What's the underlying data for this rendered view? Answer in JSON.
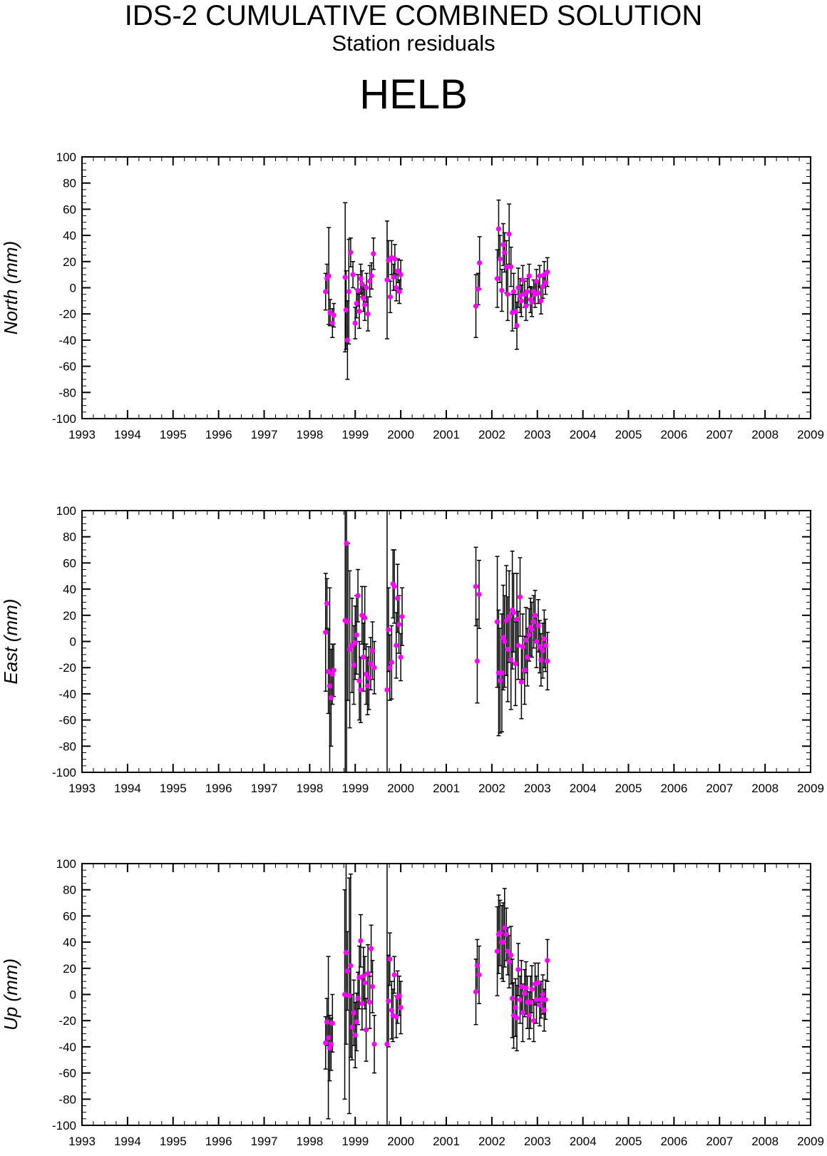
{
  "header": {
    "title": "IDS-2 CUMULATIVE COMBINED SOLUTION",
    "subtitle": "Station residuals",
    "station": "HELB"
  },
  "colors": {
    "marker": "#ff00ff",
    "errorbar": "#000000",
    "axis": "#000000"
  },
  "chart_data": [
    {
      "type": "scatter",
      "title": "HELB",
      "xlabel": "",
      "ylabel": "North (mm)",
      "xlim": [
        1993,
        2009
      ],
      "ylim": [
        -100,
        100
      ],
      "x_ticks": [
        "1993",
        "1994",
        "1995",
        "1996",
        "1997",
        "1998",
        "1999",
        "2000",
        "2001",
        "2002",
        "2003",
        "2004",
        "2005",
        "2006",
        "2007",
        "2008",
        "2009"
      ],
      "y_ticks": [
        "100",
        "80",
        "60",
        "40",
        "20",
        "0",
        "-20",
        "-40",
        "-60",
        "-80",
        "-100"
      ],
      "grid": false,
      "points": [
        [
          1998.35,
          -3,
          14
        ],
        [
          1998.38,
          7,
          11
        ],
        [
          1998.42,
          9,
          37
        ],
        [
          1998.45,
          -19,
          10
        ],
        [
          1998.5,
          -27,
          11
        ],
        [
          1998.53,
          -21,
          9
        ],
        [
          1998.78,
          8,
          57
        ],
        [
          1998.8,
          -17,
          30
        ],
        [
          1998.83,
          -40,
          30
        ],
        [
          1998.86,
          -3,
          40
        ],
        [
          1998.9,
          27,
          11
        ],
        [
          1998.95,
          10,
          10
        ],
        [
          1999.0,
          -27,
          12
        ],
        [
          1999.03,
          -12,
          11
        ],
        [
          1999.06,
          -2,
          12
        ],
        [
          1999.09,
          -18,
          13
        ],
        [
          1999.12,
          7,
          11
        ],
        [
          1999.15,
          3,
          10
        ],
        [
          1999.18,
          -8,
          10
        ],
        [
          1999.21,
          -13,
          12
        ],
        [
          1999.25,
          0,
          11
        ],
        [
          1999.28,
          -20,
          13
        ],
        [
          1999.32,
          5,
          12
        ],
        [
          1999.36,
          9,
          10
        ],
        [
          1999.4,
          26,
          12
        ],
        [
          1999.7,
          6,
          45
        ],
        [
          1999.73,
          21,
          15
        ],
        [
          1999.77,
          -7,
          12
        ],
        [
          1999.8,
          23,
          13
        ],
        [
          1999.84,
          8,
          10
        ],
        [
          1999.87,
          22,
          11
        ],
        [
          1999.9,
          0,
          10
        ],
        [
          1999.94,
          13,
          9
        ],
        [
          1999.97,
          -3,
          9
        ],
        [
          2000.0,
          10,
          11
        ],
        [
          2001.65,
          -14,
          24
        ],
        [
          2001.7,
          -1,
          12
        ],
        [
          2001.73,
          19,
          20
        ],
        [
          2002.12,
          7,
          22
        ],
        [
          2002.15,
          45,
          22
        ],
        [
          2002.18,
          22,
          18
        ],
        [
          2002.22,
          -2,
          16
        ],
        [
          2002.25,
          33,
          16
        ],
        [
          2002.28,
          27,
          15
        ],
        [
          2002.32,
          16,
          20
        ],
        [
          2002.35,
          -5,
          20
        ],
        [
          2002.38,
          41,
          23
        ],
        [
          2002.42,
          16,
          15
        ],
        [
          2002.45,
          -19,
          14
        ],
        [
          2002.48,
          -3,
          14
        ],
        [
          2002.52,
          -18,
          13
        ],
        [
          2002.55,
          -29,
          18
        ],
        [
          2002.58,
          0,
          15
        ],
        [
          2002.62,
          -6,
          13
        ],
        [
          2002.65,
          -10,
          12
        ],
        [
          2002.68,
          6,
          11
        ],
        [
          2002.72,
          -5,
          10
        ],
        [
          2002.75,
          -14,
          11
        ],
        [
          2002.78,
          -3,
          10
        ],
        [
          2002.82,
          9,
          9
        ],
        [
          2002.85,
          -9,
          10
        ],
        [
          2002.88,
          -11,
          11
        ],
        [
          2002.92,
          -3,
          9
        ],
        [
          2002.95,
          -5,
          10
        ],
        [
          2002.98,
          5,
          9
        ],
        [
          2003.02,
          -4,
          8
        ],
        [
          2003.05,
          9,
          8
        ],
        [
          2003.08,
          -10,
          10
        ],
        [
          2003.12,
          1,
          9
        ],
        [
          2003.15,
          10,
          10
        ],
        [
          2003.18,
          4,
          9
        ],
        [
          2003.22,
          12,
          11
        ]
      ]
    },
    {
      "type": "scatter",
      "title": "",
      "xlabel": "",
      "ylabel": "East (mm)",
      "xlim": [
        1993,
        2009
      ],
      "ylim": [
        -100,
        100
      ],
      "x_ticks": [
        "1993",
        "1994",
        "1995",
        "1996",
        "1997",
        "1998",
        "1999",
        "2000",
        "2001",
        "2002",
        "2003",
        "2004",
        "2005",
        "2006",
        "2007",
        "2008",
        "2009"
      ],
      "y_ticks": [
        "100",
        "80",
        "60",
        "40",
        "20",
        "0",
        "-20",
        "-40",
        "-60",
        "-80",
        "-100"
      ],
      "grid": false,
      "points": [
        [
          1998.35,
          7,
          45
        ],
        [
          1998.38,
          29,
          19
        ],
        [
          1998.41,
          -23,
          32
        ],
        [
          1998.44,
          -34,
          75
        ],
        [
          1998.47,
          -43,
          37
        ],
        [
          1998.5,
          -25,
          23
        ],
        [
          1998.53,
          -22,
          20
        ],
        [
          1998.78,
          16,
          200
        ],
        [
          1998.81,
          75,
          200
        ],
        [
          1998.84,
          15,
          60
        ],
        [
          1998.88,
          -6,
          60
        ],
        [
          1998.93,
          -3,
          36
        ],
        [
          1998.97,
          -18,
          30
        ],
        [
          1999.0,
          -1,
          28
        ],
        [
          1999.03,
          5,
          30
        ],
        [
          1999.06,
          35,
          20
        ],
        [
          1999.09,
          -30,
          30
        ],
        [
          1999.12,
          -37,
          25
        ],
        [
          1999.15,
          20,
          22
        ],
        [
          1999.18,
          -12,
          26
        ],
        [
          1999.21,
          18,
          24
        ],
        [
          1999.24,
          -25,
          23
        ],
        [
          1999.27,
          -34,
          22
        ],
        [
          1999.3,
          -28,
          24
        ],
        [
          1999.34,
          -17,
          20
        ],
        [
          1999.38,
          -7,
          22
        ],
        [
          1999.42,
          -20,
          20
        ],
        [
          1999.7,
          -37,
          140
        ],
        [
          1999.73,
          9,
          32
        ],
        [
          1999.76,
          -20,
          25
        ],
        [
          1999.8,
          -16,
          28
        ],
        [
          1999.83,
          44,
          26
        ],
        [
          1999.86,
          42,
          28
        ],
        [
          1999.9,
          -3,
          25
        ],
        [
          1999.93,
          33,
          26
        ],
        [
          1999.96,
          13,
          22
        ],
        [
          2000.0,
          -12,
          18
        ],
        [
          2000.03,
          19,
          22
        ],
        [
          2001.65,
          42,
          30
        ],
        [
          2001.68,
          -15,
          32
        ],
        [
          2001.72,
          36,
          26
        ],
        [
          2002.12,
          15,
          50
        ],
        [
          2002.15,
          -24,
          48
        ],
        [
          2002.18,
          -30,
          40
        ],
        [
          2002.22,
          -24,
          45
        ],
        [
          2002.25,
          3,
          40
        ],
        [
          2002.28,
          0,
          35
        ],
        [
          2002.32,
          16,
          42
        ],
        [
          2002.35,
          -6,
          40
        ],
        [
          2002.38,
          19,
          35
        ],
        [
          2002.42,
          -14,
          38
        ],
        [
          2002.45,
          24,
          45
        ],
        [
          2002.48,
          22,
          30
        ],
        [
          2002.52,
          -17,
          32
        ],
        [
          2002.55,
          17,
          35
        ],
        [
          2002.58,
          -3,
          26
        ],
        [
          2002.62,
          34,
          30
        ],
        [
          2002.65,
          -31,
          28
        ],
        [
          2002.68,
          -4,
          25
        ],
        [
          2002.72,
          -22,
          26
        ],
        [
          2002.75,
          1,
          25
        ],
        [
          2002.78,
          -12,
          22
        ],
        [
          2002.82,
          5,
          20
        ],
        [
          2002.85,
          11,
          22
        ],
        [
          2002.88,
          9,
          21
        ],
        [
          2002.92,
          15,
          20
        ],
        [
          2002.95,
          20,
          19
        ],
        [
          2002.98,
          0,
          20
        ],
        [
          2003.02,
          12,
          20
        ],
        [
          2003.05,
          -4,
          20
        ],
        [
          2003.08,
          -14,
          20
        ],
        [
          2003.12,
          -7,
          21
        ],
        [
          2003.15,
          2,
          22
        ],
        [
          2003.18,
          -3,
          20
        ],
        [
          2003.22,
          -15,
          22
        ]
      ]
    },
    {
      "type": "scatter",
      "title": "",
      "xlabel": "",
      "ylabel": "Up (mm)",
      "xlim": [
        1993,
        2009
      ],
      "ylim": [
        -100,
        100
      ],
      "x_ticks": [
        "1993",
        "1994",
        "1995",
        "1996",
        "1997",
        "1998",
        "1999",
        "2000",
        "2001",
        "2002",
        "2003",
        "2004",
        "2005",
        "2006",
        "2007",
        "2008",
        "2009"
      ],
      "y_ticks": [
        "100",
        "80",
        "60",
        "40",
        "20",
        "0",
        "-20",
        "-40",
        "-60",
        "-80",
        "-100"
      ],
      "grid": false,
      "points": [
        [
          1998.35,
          -37,
          20
        ],
        [
          1998.38,
          -21,
          18
        ],
        [
          1998.41,
          -33,
          62
        ],
        [
          1998.44,
          -41,
          25
        ],
        [
          1998.47,
          -38,
          20
        ],
        [
          1998.5,
          -22,
          22
        ],
        [
          1998.77,
          0,
          80
        ],
        [
          1998.8,
          32,
          70
        ],
        [
          1998.83,
          18,
          30
        ],
        [
          1998.87,
          -1,
          90
        ],
        [
          1998.9,
          22,
          70
        ],
        [
          1998.93,
          -25,
          25
        ],
        [
          1998.97,
          -14,
          25
        ],
        [
          1999.0,
          -31,
          25
        ],
        [
          1999.03,
          -21,
          22
        ],
        [
          1999.06,
          -3,
          20
        ],
        [
          1999.09,
          13,
          24
        ],
        [
          1999.12,
          41,
          20
        ],
        [
          1999.15,
          -7,
          20
        ],
        [
          1999.18,
          14,
          22
        ],
        [
          1999.21,
          9,
          20
        ],
        [
          1999.24,
          -27,
          24
        ],
        [
          1999.28,
          16,
          22
        ],
        [
          1999.32,
          -6,
          20
        ],
        [
          1999.35,
          35,
          18
        ],
        [
          1999.38,
          6,
          20
        ],
        [
          1999.42,
          -38,
          22
        ],
        [
          1999.7,
          -38,
          140
        ],
        [
          1999.73,
          -5,
          35
        ],
        [
          1999.76,
          27,
          20
        ],
        [
          1999.8,
          -12,
          22
        ],
        [
          1999.83,
          -16,
          20
        ],
        [
          1999.86,
          15,
          14
        ],
        [
          1999.9,
          -17,
          16
        ],
        [
          1999.93,
          -2,
          20
        ],
        [
          1999.97,
          -1,
          15
        ],
        [
          2000.0,
          -10,
          20
        ],
        [
          2001.65,
          2,
          25
        ],
        [
          2001.68,
          22,
          20
        ],
        [
          2001.72,
          15,
          22
        ],
        [
          2002.12,
          33,
          34
        ],
        [
          2002.15,
          46,
          30
        ],
        [
          2002.18,
          47,
          25
        ],
        [
          2002.22,
          40,
          28
        ],
        [
          2002.25,
          40,
          30
        ],
        [
          2002.28,
          51,
          30
        ],
        [
          2002.32,
          46,
          20
        ],
        [
          2002.35,
          33,
          18
        ],
        [
          2002.38,
          25,
          20
        ],
        [
          2002.42,
          30,
          22
        ],
        [
          2002.45,
          -3,
          30
        ],
        [
          2002.48,
          -16,
          25
        ],
        [
          2002.52,
          -10,
          22
        ],
        [
          2002.55,
          -18,
          25
        ],
        [
          2002.58,
          19,
          20
        ],
        [
          2002.62,
          -4,
          18
        ],
        [
          2002.65,
          6,
          20
        ],
        [
          2002.68,
          -14,
          22
        ],
        [
          2002.72,
          1,
          18
        ],
        [
          2002.75,
          5,
          20
        ],
        [
          2002.78,
          -6,
          20
        ],
        [
          2002.82,
          -16,
          18
        ],
        [
          2002.85,
          -6,
          20
        ],
        [
          2002.88,
          4,
          18
        ],
        [
          2002.92,
          -20,
          16
        ],
        [
          2002.95,
          8,
          16
        ],
        [
          2002.98,
          -4,
          18
        ],
        [
          2003.02,
          9,
          15
        ],
        [
          2003.05,
          -8,
          16
        ],
        [
          2003.08,
          -4,
          14
        ],
        [
          2003.12,
          0,
          15
        ],
        [
          2003.15,
          -12,
          16
        ],
        [
          2003.18,
          -4,
          15
        ],
        [
          2003.22,
          26,
          16
        ]
      ]
    }
  ]
}
